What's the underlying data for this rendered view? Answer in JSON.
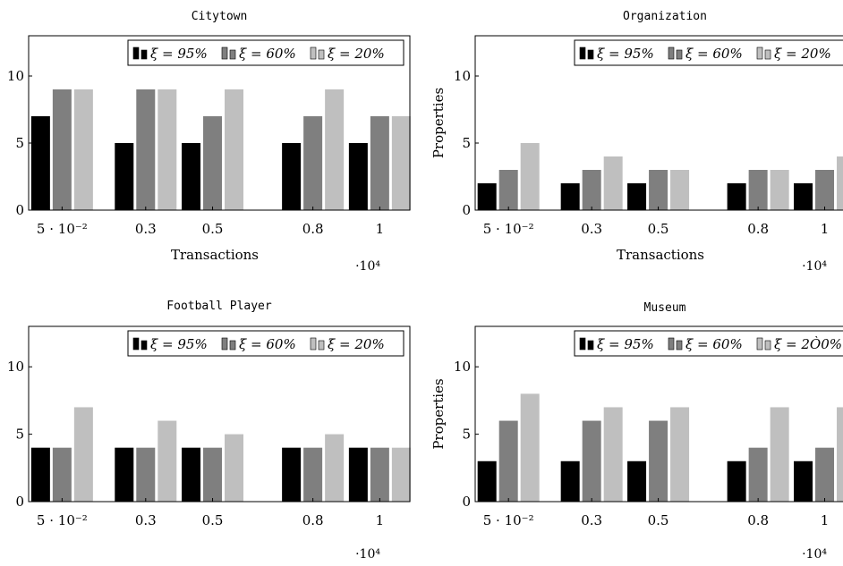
{
  "chart_data": [
    {
      "type": "bar",
      "title": "Citytown",
      "xlabel": "Transactions",
      "ylabel": "",
      "x_scale_note": "·10⁴",
      "x": [
        0.05,
        0.3,
        0.5,
        0.8,
        1.0
      ],
      "x_tick_labels": [
        "5 · 10⁻²",
        "0.3",
        "0.5",
        "0.8",
        "1"
      ],
      "y_ticks": [
        0,
        5,
        10
      ],
      "ylim": [
        0,
        13
      ],
      "series": [
        {
          "name": "ξ = 95%",
          "values": [
            7,
            5,
            5,
            5,
            5
          ]
        },
        {
          "name": "ξ = 60%",
          "values": [
            9,
            9,
            7,
            7,
            7
          ]
        },
        {
          "name": "ξ = 20%",
          "values": [
            9,
            9,
            9,
            9,
            7
          ]
        }
      ],
      "legend": "top-right"
    },
    {
      "type": "bar",
      "title": "Organization",
      "xlabel": "Transactions",
      "ylabel": "Properties",
      "x_scale_note": "·10⁴",
      "x": [
        0.05,
        0.3,
        0.5,
        0.8,
        1.0
      ],
      "x_tick_labels": [
        "5 · 10⁻²",
        "0.3",
        "0.5",
        "0.8",
        "1"
      ],
      "y_ticks": [
        0,
        5,
        10
      ],
      "ylim": [
        0,
        13
      ],
      "series": [
        {
          "name": "ξ = 95%",
          "values": [
            2,
            2,
            2,
            2,
            2
          ]
        },
        {
          "name": "ξ = 60%",
          "values": [
            3,
            3,
            3,
            3,
            3
          ]
        },
        {
          "name": "ξ = 20%",
          "values": [
            5,
            4,
            3,
            3,
            4
          ]
        }
      ],
      "legend": "top-right"
    },
    {
      "type": "bar",
      "title": "Football Player",
      "xlabel": "",
      "ylabel": "",
      "x_scale_note": "·10⁴",
      "x": [
        0.05,
        0.3,
        0.5,
        0.8,
        1.0
      ],
      "x_tick_labels": [
        "5 · 10⁻²",
        "0.3",
        "0.5",
        "0.8",
        "1"
      ],
      "y_ticks": [
        0,
        5,
        10
      ],
      "ylim": [
        0,
        13
      ],
      "series": [
        {
          "name": "ξ = 95%",
          "values": [
            4,
            4,
            4,
            4,
            4
          ]
        },
        {
          "name": "ξ = 60%",
          "values": [
            4,
            4,
            4,
            4,
            4
          ]
        },
        {
          "name": "ξ = 20%",
          "values": [
            7,
            6,
            5,
            5,
            4
          ]
        }
      ],
      "legend": "top-right"
    },
    {
      "type": "bar",
      "title": "Museum",
      "xlabel": "",
      "ylabel": "Properties",
      "x_scale_note": "·10⁴",
      "x": [
        0.05,
        0.3,
        0.5,
        0.8,
        1.0
      ],
      "x_tick_labels": [
        "5 · 10⁻²",
        "0.3",
        "0.5",
        "0.8",
        "1"
      ],
      "y_ticks": [
        0,
        5,
        10
      ],
      "ylim": [
        0,
        13
      ],
      "series": [
        {
          "name": "ξ = 95%",
          "values": [
            3,
            3,
            3,
            3,
            3
          ]
        },
        {
          "name": "ξ = 60%",
          "values": [
            6,
            6,
            6,
            4,
            4
          ]
        },
        {
          "name": "ξ = 2Ò0%",
          "values": [
            8,
            7,
            7,
            7,
            7
          ]
        }
      ],
      "legend": "top-right"
    }
  ],
  "colors": {
    "series": [
      "#000000",
      "#7f7f7f",
      "#bfbfbf"
    ],
    "axis": "#000000"
  }
}
